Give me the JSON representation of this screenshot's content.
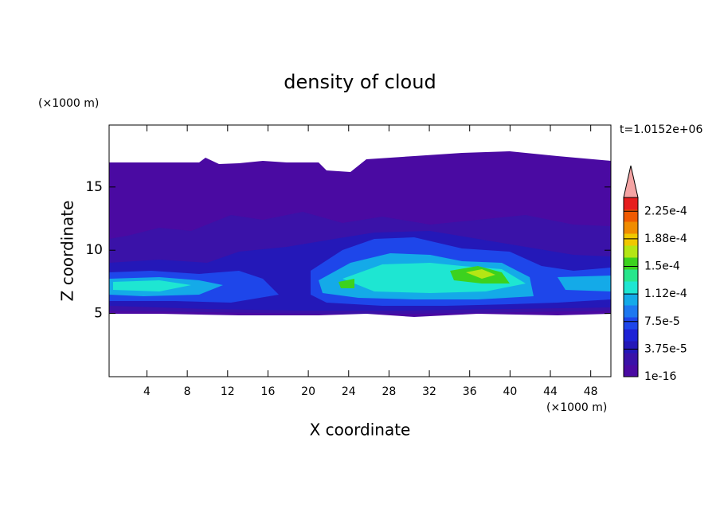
{
  "chart_data": {
    "type": "contour",
    "title": "density of cloud",
    "x_label": "X coordinate",
    "y_label": "Z coordinate",
    "x_unit": "(×1000 m)",
    "y_unit": "(×1000 m)",
    "time_label": "t=1.0152e+06",
    "xlim": [
      0.25,
      50
    ],
    "xticks": [
      4,
      8,
      12,
      16,
      20,
      24,
      28,
      32,
      36,
      40,
      44,
      48
    ],
    "ylim": [
      0,
      19.9
    ],
    "yticks": [
      5,
      10,
      15
    ],
    "colorbar": {
      "clim": [
        0,
        0.00024375
      ],
      "ticks": [
        {
          "value": 1e-16,
          "label": "1e-16"
        },
        {
          "value": 3.75e-05,
          "label": "3.75e-5"
        },
        {
          "value": 7.5e-05,
          "label": "7.5e-5"
        },
        {
          "value": 0.0001125,
          "label": "1.12e-4"
        },
        {
          "value": 0.00015,
          "label": "1.5e-4"
        },
        {
          "value": 0.0001875,
          "label": "1.88e-4"
        },
        {
          "value": 0.000225,
          "label": "2.25e-4"
        }
      ],
      "colors": [
        "#4a0aa2",
        "#3a12a8",
        "#2418b8",
        "#1e22d6",
        "#1e46ea",
        "#1e78f0",
        "#14aae8",
        "#1ee6d2",
        "#28e68c",
        "#3cd21e",
        "#b4e614",
        "#f0c800",
        "#f08c00",
        "#f05a00",
        "#e61e1e"
      ],
      "over_color": "#f4a4a4"
    }
  }
}
